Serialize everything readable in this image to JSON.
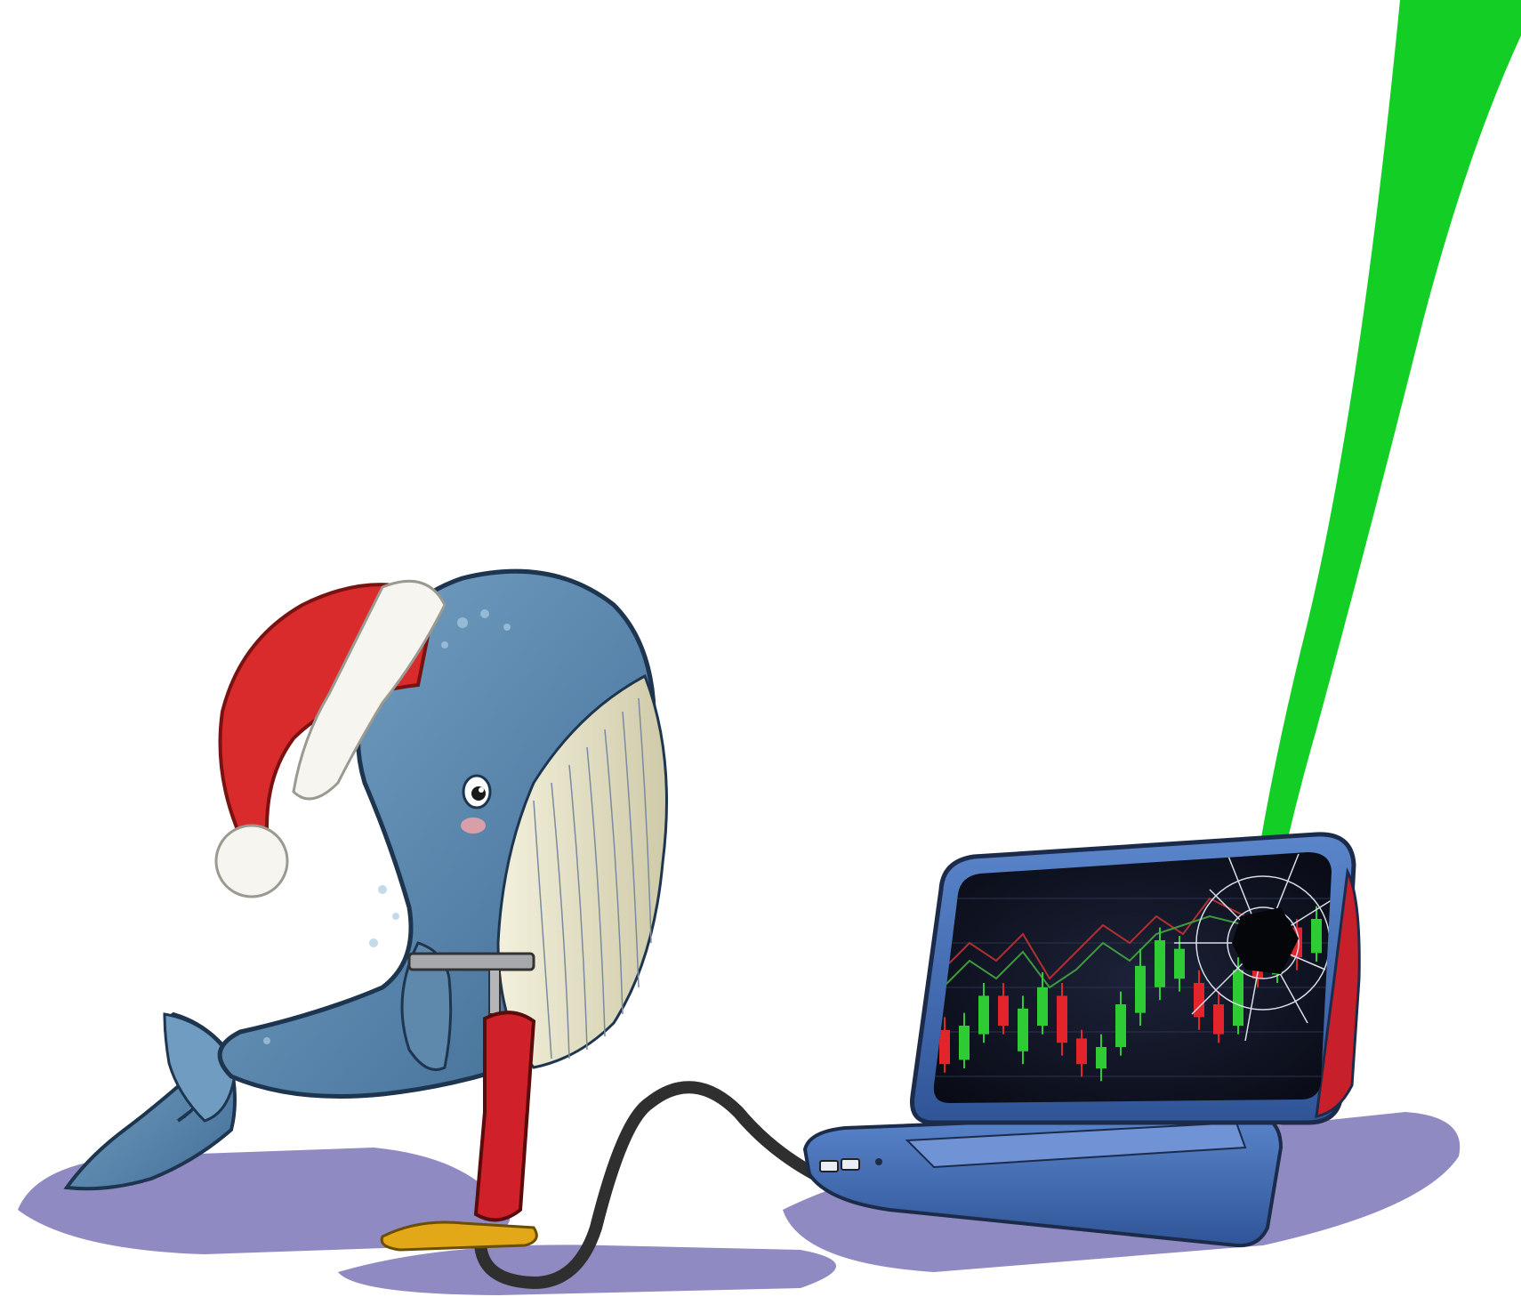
{
  "colors": {
    "background": "#ffffff",
    "shadow": "#8f8bc2",
    "whale_body": "#5f88ad",
    "whale_belly": "#e6e2c4",
    "hat_red": "#d92b2b",
    "hat_fur": "#f7f5ef",
    "pump_red": "#d0202a",
    "pump_base": "#e2a817",
    "hose": "#2f2f2f",
    "laptop_blue": "#3d68b0",
    "screen_bg": "#0f1322",
    "candle_up": "#2ecb35",
    "candle_down": "#e3242b",
    "green_beam": "#13cf25"
  },
  "candles": [
    {
      "dir": "down",
      "open": 28,
      "close": 12,
      "high": 34,
      "low": 8
    },
    {
      "dir": "up",
      "open": 14,
      "close": 30,
      "high": 36,
      "low": 10
    },
    {
      "dir": "up",
      "open": 26,
      "close": 44,
      "high": 50,
      "low": 22
    },
    {
      "dir": "down",
      "open": 44,
      "close": 30,
      "high": 50,
      "low": 26
    },
    {
      "dir": "up",
      "open": 18,
      "close": 38,
      "high": 44,
      "low": 12
    },
    {
      "dir": "up",
      "open": 30,
      "close": 48,
      "high": 55,
      "low": 26
    },
    {
      "dir": "down",
      "open": 44,
      "close": 22,
      "high": 50,
      "low": 16
    },
    {
      "dir": "down",
      "open": 24,
      "close": 12,
      "high": 28,
      "low": 6
    },
    {
      "dir": "up",
      "open": 10,
      "close": 20,
      "high": 26,
      "low": 4
    },
    {
      "dir": "up",
      "open": 20,
      "close": 40,
      "high": 46,
      "low": 16
    },
    {
      "dir": "up",
      "open": 36,
      "close": 58,
      "high": 66,
      "low": 30
    },
    {
      "dir": "up",
      "open": 48,
      "close": 70,
      "high": 76,
      "low": 42
    },
    {
      "dir": "up",
      "open": 52,
      "close": 66,
      "high": 72,
      "low": 46
    },
    {
      "dir": "down",
      "open": 50,
      "close": 34,
      "high": 56,
      "low": 28
    },
    {
      "dir": "down",
      "open": 40,
      "close": 26,
      "high": 46,
      "low": 22
    },
    {
      "dir": "up",
      "open": 30,
      "close": 56,
      "high": 62,
      "low": 26
    },
    {
      "dir": "down",
      "open": 62,
      "close": 52,
      "high": 66,
      "low": 48
    },
    {
      "dir": "up",
      "open": 54,
      "close": 72,
      "high": 78,
      "low": 50
    },
    {
      "dir": "down",
      "open": 76,
      "close": 62,
      "high": 80,
      "low": 56
    },
    {
      "dir": "up",
      "open": 64,
      "close": 80,
      "high": 86,
      "low": 60
    }
  ]
}
